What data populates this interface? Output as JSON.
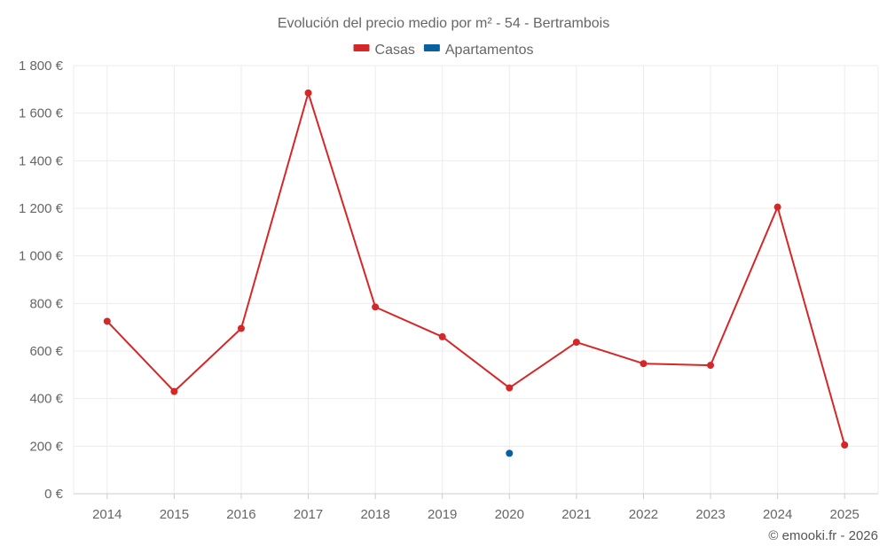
{
  "chart_data": {
    "type": "line",
    "title": "Evolución del precio medio por m² - 54 - Bertrambois",
    "categories": [
      "2014",
      "2015",
      "2016",
      "2017",
      "2018",
      "2019",
      "2020",
      "2021",
      "2022",
      "2023",
      "2024",
      "2025"
    ],
    "series": [
      {
        "name": "Casas",
        "color": "#d62728",
        "values": [
          725,
          430,
          695,
          1685,
          785,
          660,
          445,
          637,
          547,
          540,
          1205,
          205
        ]
      },
      {
        "name": "Apartamentos",
        "color": "#08609e",
        "values": [
          null,
          null,
          null,
          null,
          null,
          null,
          170,
          null,
          null,
          null,
          null,
          null
        ]
      }
    ],
    "ylim": [
      0,
      1800
    ],
    "yticks": [
      0,
      200,
      400,
      600,
      800,
      1000,
      1200,
      1400,
      1600,
      1800
    ],
    "ytick_labels": [
      "0 €",
      "200 €",
      "400 €",
      "600 €",
      "800 €",
      "1 000 €",
      "1 200 €",
      "1 400 €",
      "1 600 €",
      "1 800 €"
    ],
    "grid": true,
    "legend": "top-center",
    "credit": "© emooki.fr - 2026"
  }
}
